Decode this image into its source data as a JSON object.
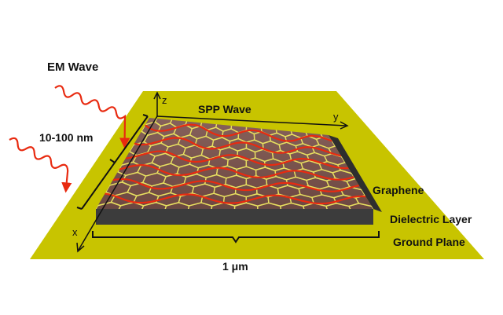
{
  "labels": {
    "em_wave": "EM Wave",
    "spp_wave": "SPP Wave",
    "thickness": "10-100 nm",
    "graphene": "Graphene",
    "dielectric": "Dielectric Layer",
    "ground_plane": "Ground Plane",
    "width": "1 μm",
    "axis_z": "z",
    "axis_y": "y",
    "axis_x": "x"
  },
  "colors": {
    "ground_plane": "#c8c400",
    "dielectric_top": "#5a5a5a",
    "dielectric_front": "#3c3c3c",
    "graphene_lattice": "#e8e060",
    "wave": "#e82a10",
    "glow": "#ff4020"
  }
}
